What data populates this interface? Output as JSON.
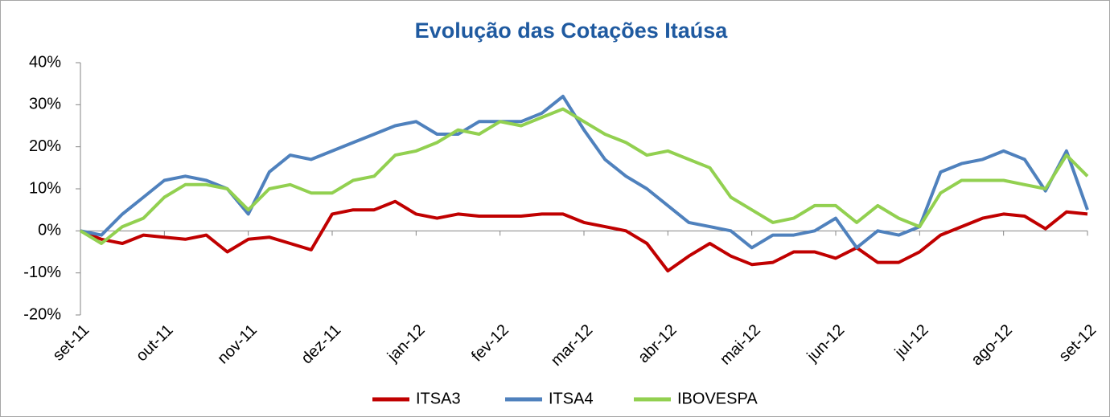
{
  "chart_data": {
    "type": "line",
    "title": "Evolução das Cotações Itaúsa",
    "categories": [
      "set-11",
      null,
      null,
      null,
      "out-11",
      null,
      null,
      null,
      "nov-11",
      null,
      null,
      null,
      "dez-11",
      null,
      null,
      null,
      "jan-12",
      null,
      null,
      null,
      "fev-12",
      null,
      null,
      null,
      "mar-12",
      null,
      null,
      null,
      "abr-12",
      null,
      null,
      null,
      "mai-12",
      null,
      null,
      null,
      "jun-12",
      null,
      null,
      null,
      "jul-12",
      null,
      null,
      null,
      "ago-12",
      null,
      null,
      null,
      "set-12"
    ],
    "series": [
      {
        "name": "ITSA3",
        "color": "#c00000",
        "values": [
          0,
          -2,
          -3,
          -1,
          -1.5,
          -2,
          -1,
          -5,
          -2,
          -1.5,
          -3,
          -4.5,
          4,
          5,
          5,
          7,
          4,
          3,
          4,
          3.5,
          3.5,
          3.5,
          4,
          4,
          2,
          1,
          0,
          -3,
          -9.5,
          -6,
          -3,
          -6,
          -8,
          -7.5,
          -5,
          -5,
          -6.5,
          -4,
          -7.5,
          -7.5,
          -5,
          -1,
          1,
          3,
          4,
          3.5,
          0.5,
          4.5,
          4
        ]
      },
      {
        "name": "ITSA4",
        "color": "#4f81bd",
        "values": [
          0,
          -1,
          4,
          8,
          12,
          13,
          12,
          10,
          4,
          14,
          18,
          17,
          19,
          21,
          23,
          25,
          26,
          23,
          23,
          26,
          26,
          26,
          28,
          32,
          24,
          17,
          13,
          10,
          6,
          2,
          1,
          0,
          -4,
          -1,
          -1,
          0,
          3,
          -4,
          0,
          -1,
          1,
          14,
          16,
          17,
          19,
          17,
          9.5,
          19,
          5
        ]
      },
      {
        "name": "IBOVESPA",
        "color": "#92d050",
        "values": [
          0,
          -3,
          1,
          3,
          8,
          11,
          11,
          10,
          5,
          10,
          11,
          9,
          9,
          12,
          13,
          18,
          19,
          21,
          24,
          23,
          26,
          25,
          27,
          29,
          26,
          23,
          21,
          18,
          19,
          17,
          15,
          8,
          5,
          2,
          3,
          6,
          6,
          2,
          6,
          3,
          1,
          9,
          12,
          12,
          12,
          11,
          10,
          18,
          13
        ]
      }
    ],
    "ylim": [
      -20,
      40
    ],
    "yticks": [
      {
        "value": -20,
        "label": "-20%"
      },
      {
        "value": -10,
        "label": "-10%"
      },
      {
        "value": 0,
        "label": "0%"
      },
      {
        "value": 10,
        "label": "10%"
      },
      {
        "value": 20,
        "label": "20%"
      },
      {
        "value": 30,
        "label": "30%"
      },
      {
        "value": 40,
        "label": "40%"
      }
    ],
    "legend": "bottom"
  }
}
